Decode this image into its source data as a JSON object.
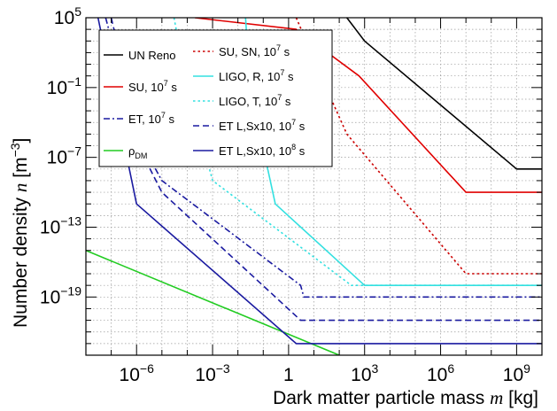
{
  "chart_data": {
    "type": "line",
    "xlabel": "Dark matter particle mass m [kg]",
    "xlabel_parts": {
      "pre": "Dark matter particle mass ",
      "var": "m",
      "post": " [kg]"
    },
    "ylabel": "Number density n [m^-3]",
    "ylabel_parts": {
      "pre": "Number density ",
      "var": "n",
      "post": " [m",
      "sup": "−3",
      "close": "]"
    },
    "x_scale": "log",
    "y_scale": "log",
    "xlim": [
      1e-08,
      10000000000.0
    ],
    "ylim": [
      1e-24,
      100000.0
    ],
    "grid": true,
    "x_ticks": [
      {
        "value": 1e-06,
        "base": "10",
        "exp": "−6"
      },
      {
        "value": 0.001,
        "base": "10",
        "exp": "−3"
      },
      {
        "value": 1,
        "base": "1",
        "exp": ""
      },
      {
        "value": 1000.0,
        "base": "10",
        "exp": "3"
      },
      {
        "value": 1000000.0,
        "base": "10",
        "exp": "6"
      },
      {
        "value": 1000000000.0,
        "base": "10",
        "exp": "9"
      }
    ],
    "y_ticks": [
      {
        "value": 100000.0,
        "base": "10",
        "exp": "5"
      },
      {
        "value": 0.1,
        "base": "10",
        "exp": "−1"
      },
      {
        "value": 1e-07,
        "base": "10",
        "exp": "−7"
      },
      {
        "value": 1e-13,
        "base": "10",
        "exp": "−13"
      },
      {
        "value": 1e-19,
        "base": "10",
        "exp": "−19"
      }
    ],
    "legend_position": "top-left",
    "series": [
      {
        "label": "UN Reno",
        "label_sup": "",
        "label_tail": "",
        "label_sub": "",
        "color": "#000000",
        "dash": "solid",
        "points": [
          [
            200,
            100000.0
          ],
          [
            1000,
            1000.0
          ],
          [
            1000000000.0,
            1e-08
          ],
          [
            10000000000.0,
            1e-08
          ]
        ]
      },
      {
        "label": "SU, 10",
        "label_sup": "7",
        "label_tail": " s",
        "label_sub": "",
        "color": "#e00000",
        "dash": "solid",
        "points": [
          [
            0.0002,
            100000.0
          ],
          [
            2,
            10000.0
          ],
          [
            600,
            1.0
          ],
          [
            10000000.0,
            1e-10
          ],
          [
            10000000000.0,
            1e-10
          ]
        ]
      },
      {
        "label": "ET, 10",
        "label_sup": "7",
        "label_tail": " s",
        "label_sub": "",
        "color": "#1a1aa0",
        "dash": "dashdot",
        "points": [
          [
            6e-08,
            100000.0
          ],
          [
            1e-06,
            1e-05
          ],
          [
            1e-05,
            1e-09
          ],
          [
            3,
            1e-18
          ],
          [
            4,
            1e-19
          ],
          [
            10000000000.0,
            1e-19
          ]
        ]
      },
      {
        "label": "ρ",
        "label_sup": "",
        "label_tail": "",
        "label_sub": "DM",
        "color": "#22cc22",
        "dash": "solid",
        "points": [
          [
            1e-08,
            1e-15
          ],
          [
            100.0,
            1e-24
          ]
        ]
      },
      {
        "label": "SU, SN, 10",
        "label_sup": "7",
        "label_tail": " s",
        "label_sub": "",
        "color": "#cc0000",
        "dash": "dotted",
        "points": [
          [
            2,
            100000.0
          ],
          [
            30,
            0.1
          ],
          [
            200,
            1e-05
          ],
          [
            10000000.0,
            1e-17
          ],
          [
            10000000000.0,
            1e-17
          ]
        ]
      },
      {
        "label": "LIGO, R, 10",
        "label_sup": "7",
        "label_tail": " s",
        "label_sub": "",
        "color": "#33e0e0",
        "dash": "solid",
        "points": [
          [
            0.02,
            100000.0
          ],
          [
            0.03,
            0.1
          ],
          [
            0.3,
            1e-11
          ],
          [
            1000,
            1e-18
          ],
          [
            10000000000.0,
            1e-18
          ]
        ]
      },
      {
        "label": "LIGO, T, 10",
        "label_sup": "7",
        "label_tail": " s",
        "label_sub": "",
        "color": "#33e0e0",
        "dash": "dotted",
        "points": [
          [
            3e-05,
            100000.0
          ],
          [
            0.0001,
            0.1
          ],
          [
            0.001,
            1e-09
          ],
          [
            300,
            1e-18
          ],
          [
            10000000000.0,
            1e-18
          ]
        ]
      },
      {
        "label": "ET L,Sx10, 10",
        "label_sup": "7",
        "label_tail": " s",
        "label_sub": "",
        "color": "#1a1aa0",
        "dash": "dashed",
        "points": [
          [
            1e-07,
            100000.0
          ],
          [
            2e-06,
            1e-07
          ],
          [
            1e-05,
            1e-10
          ],
          [
            3,
            1e-21
          ],
          [
            10000000000.0,
            1e-21
          ]
        ]
      },
      {
        "label": "ET L,Sx10, 10",
        "label_sup": "8",
        "label_tail": " s",
        "label_sub": "",
        "color": "#1a1aa0",
        "dash": "solid",
        "points": [
          [
            3e-08,
            100000.0
          ],
          [
            1e-06,
            1e-11
          ],
          [
            2,
            1e-23
          ],
          [
            10000000000.0,
            1e-23
          ]
        ]
      }
    ]
  }
}
